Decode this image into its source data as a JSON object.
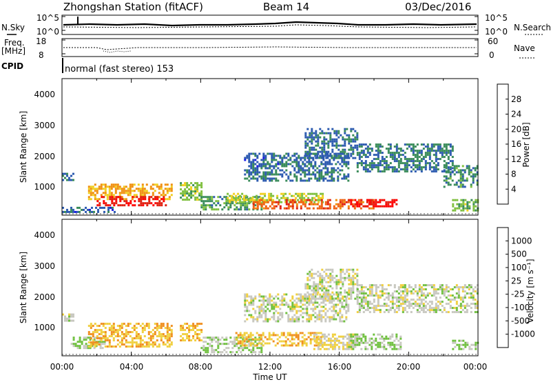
{
  "header": {
    "station": "Zhongshan Station (fitACF)",
    "beam": "Beam 14",
    "date": "03/Dec/2016"
  },
  "nsky_panel": {
    "left_label": "N.Sky",
    "left_ticks": [
      "10^5",
      "10^0"
    ],
    "right_label": "N.Search",
    "right_ticks": [
      "10^5",
      "10^0"
    ]
  },
  "freq_panel": {
    "label_top": "Freq.",
    "label_unit": "[MHz]",
    "left_ticks": [
      "18",
      "8"
    ],
    "right_label": "Nave",
    "right_ticks": [
      "60",
      "0"
    ]
  },
  "cpid": {
    "label": "CPID",
    "text": "normal (fast stereo) 153"
  },
  "power_panel": {
    "ylabel": "Slant Range [km]",
    "yticks": [
      "1000",
      "2000",
      "3000",
      "4000"
    ],
    "colorbar_label": "Power [dB]",
    "colorbar_ticks": [
      "4",
      "8",
      "12",
      "16",
      "20",
      "24",
      "28"
    ],
    "colors": [
      "#1a1ae6",
      "#2d5bb0",
      "#3a8c5a",
      "#80c040",
      "#f0d020",
      "#f09010",
      "#f06010",
      "#e02010",
      "#ff0000"
    ]
  },
  "velocity_panel": {
    "ylabel": "Slant Range [km]",
    "yticks": [
      "1000",
      "2000",
      "3000",
      "4000"
    ],
    "colorbar_label": "Velocity [m s⁻¹]",
    "colorbar_ticks": [
      "1000",
      "500",
      "100",
      "25",
      "-25",
      "-100",
      "-500",
      "-1000"
    ],
    "colors": [
      "#1a3ac8",
      "#3070c0",
      "#3a8c5a",
      "#70c040",
      "#c8c8c0",
      "#f0d040",
      "#f09020",
      "#f06010",
      "#e02010"
    ]
  },
  "xaxis": {
    "ticks": [
      "00:00",
      "04:00",
      "08:00",
      "12:00",
      "16:00",
      "20:00",
      "00:00"
    ],
    "label": "Time UT"
  },
  "chart_data": [
    {
      "type": "heatmap",
      "title": "Power",
      "xlabel": "Time UT",
      "ylabel": "Slant Range [km]",
      "xlim": [
        0,
        24
      ],
      "ylim": [
        180,
        4600
      ],
      "colorbar": "Power [dB]",
      "colorbar_range": [
        0,
        30
      ],
      "regions": [
        {
          "t0": 0.0,
          "t1": 0.6,
          "r0": 1300,
          "r1": 1550,
          "value": 6
        },
        {
          "t0": 0.0,
          "t1": 3.0,
          "r0": 280,
          "r1": 450,
          "value": 5
        },
        {
          "t0": 1.5,
          "t1": 6.3,
          "r0": 700,
          "r1": 1200,
          "value": 17
        },
        {
          "t0": 2.0,
          "t1": 6.0,
          "r0": 500,
          "r1": 800,
          "value": 26
        },
        {
          "t0": 6.8,
          "t1": 8.1,
          "r0": 650,
          "r1": 1250,
          "value": 12
        },
        {
          "t0": 8.0,
          "t1": 11.5,
          "r0": 350,
          "r1": 800,
          "value": 9
        },
        {
          "t0": 9.5,
          "t1": 15.0,
          "r0": 600,
          "r1": 900,
          "value": 13
        },
        {
          "t0": 11.0,
          "t1": 18.0,
          "r0": 400,
          "r1": 700,
          "value": 22
        },
        {
          "t0": 16.5,
          "t1": 19.3,
          "r0": 450,
          "r1": 700,
          "value": 27
        },
        {
          "t0": 10.5,
          "t1": 16.5,
          "r0": 1300,
          "r1": 2200,
          "value": 6
        },
        {
          "t0": 14.0,
          "t1": 17.0,
          "r0": 2000,
          "r1": 3000,
          "value": 6
        },
        {
          "t0": 17.0,
          "t1": 22.5,
          "r0": 1600,
          "r1": 2500,
          "value": 7
        },
        {
          "t0": 22.0,
          "t1": 24.0,
          "r0": 1100,
          "r1": 1800,
          "value": 8
        },
        {
          "t0": 22.5,
          "t1": 24.0,
          "r0": 300,
          "r1": 700,
          "value": 11
        }
      ]
    },
    {
      "type": "heatmap",
      "title": "Velocity",
      "xlabel": "Time UT",
      "ylabel": "Slant Range [km]",
      "xlim": [
        0,
        24
      ],
      "ylim": [
        180,
        4600
      ],
      "colorbar": "Velocity [m s⁻¹]",
      "colorbar_range": [
        -1000,
        1000
      ],
      "regions": [
        {
          "t0": 0.0,
          "t1": 0.6,
          "r0": 1300,
          "r1": 1550,
          "value": 0
        },
        {
          "t0": 0.5,
          "t1": 2.5,
          "r0": 400,
          "r1": 800,
          "value": 150
        },
        {
          "t0": 1.5,
          "t1": 6.3,
          "r0": 500,
          "r1": 1250,
          "value": -300
        },
        {
          "t0": 6.8,
          "t1": 8.1,
          "r0": 650,
          "r1": 1250,
          "value": -300
        },
        {
          "t0": 8.0,
          "t1": 11.5,
          "r0": 300,
          "r1": 800,
          "value": 100
        },
        {
          "t0": 10.0,
          "t1": 15.0,
          "r0": 500,
          "r1": 950,
          "value": -300
        },
        {
          "t0": 14.5,
          "t1": 17.0,
          "r0": 400,
          "r1": 900,
          "value": -150
        },
        {
          "t0": 16.5,
          "t1": 19.5,
          "r0": 400,
          "r1": 900,
          "value": 120
        },
        {
          "t0": 10.5,
          "t1": 16.5,
          "r0": 1300,
          "r1": 2200,
          "value": 0
        },
        {
          "t0": 14.0,
          "t1": 17.0,
          "r0": 2000,
          "r1": 3000,
          "value": 0
        },
        {
          "t0": 17.0,
          "t1": 24.0,
          "r0": 1600,
          "r1": 2500,
          "value": 0
        },
        {
          "t0": 22.5,
          "t1": 24.0,
          "r0": 400,
          "r1": 700,
          "value": 150
        }
      ]
    }
  ]
}
